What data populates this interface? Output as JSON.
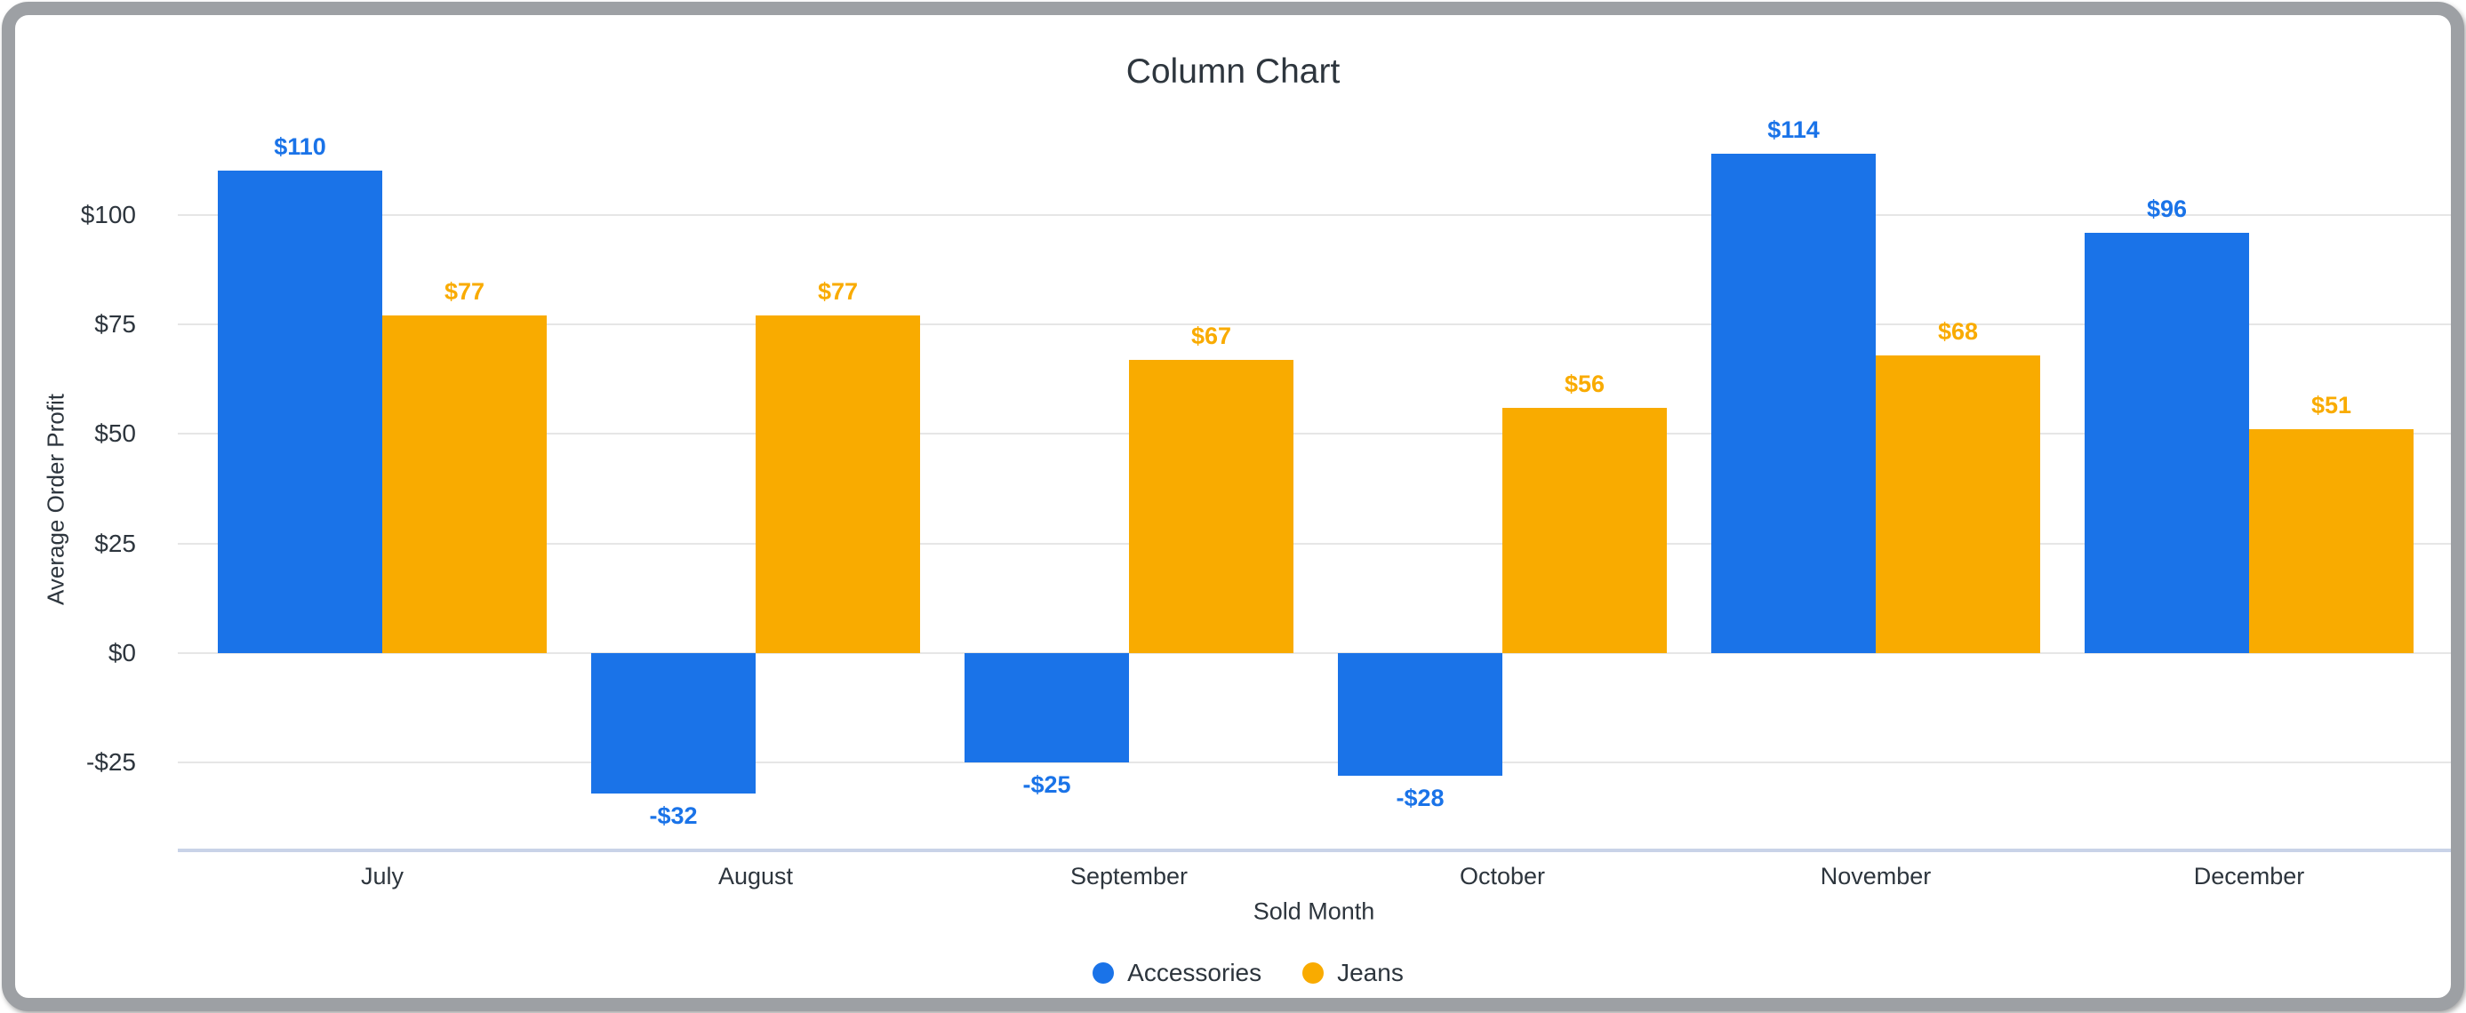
{
  "chart_data": {
    "type": "bar",
    "title": "Column Chart",
    "xlabel": "Sold Month",
    "ylabel": "Average Order Profit",
    "categories": [
      "July",
      "August",
      "September",
      "October",
      "November",
      "December"
    ],
    "series": [
      {
        "name": "Accessories",
        "color": "#1a73e8",
        "values": [
          110,
          -32,
          -25,
          -28,
          114,
          96
        ],
        "labels": [
          "$110",
          "-$32",
          "-$25",
          "-$28",
          "$114",
          "$96"
        ]
      },
      {
        "name": "Jeans",
        "color": "#f9ab00",
        "values": [
          77,
          77,
          67,
          56,
          68,
          51
        ],
        "labels": [
          "$77",
          "$77",
          "$67",
          "$56",
          "$68",
          "$51"
        ]
      }
    ],
    "y_axis": {
      "min": -45,
      "max": 125.3,
      "ticks": [
        {
          "value": -25,
          "label": "-$25"
        },
        {
          "value": 0,
          "label": "$0"
        },
        {
          "value": 25,
          "label": "$25"
        },
        {
          "value": 50,
          "label": "$50"
        },
        {
          "value": 75,
          "label": "$75"
        },
        {
          "value": 100,
          "label": "$100"
        }
      ]
    },
    "legend": {
      "position": "bottom",
      "items": [
        "Accessories",
        "Jeans"
      ]
    },
    "grid": true
  },
  "colors": {
    "grid": "#e6e6e6",
    "axis_line": "#c9d3e8",
    "text": "#2d353d",
    "card_border": "#9da0a4",
    "background": "#ffffff"
  }
}
